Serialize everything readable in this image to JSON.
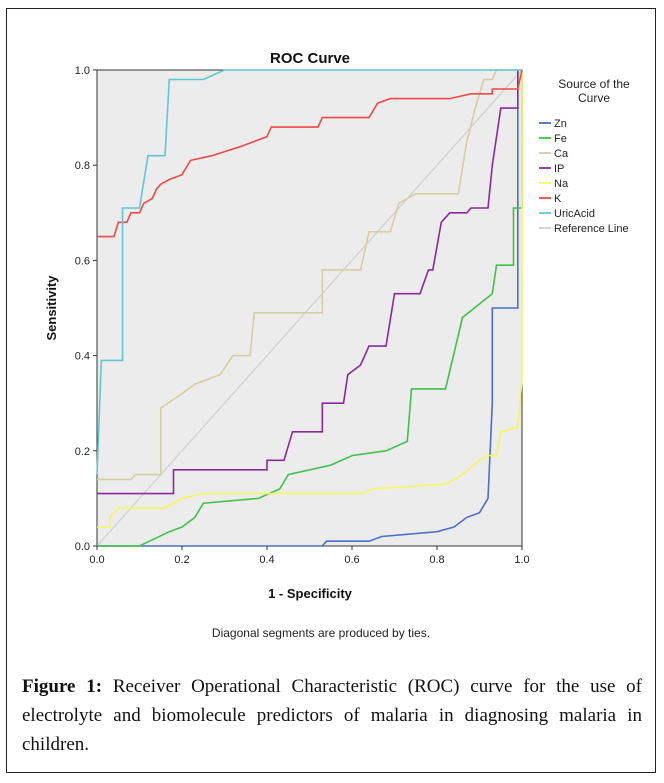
{
  "chart_data": {
    "type": "line",
    "title": "ROC Curve",
    "xlabel": "1 - Specificity",
    "ylabel": "Sensitivity",
    "xlim": [
      0.0,
      1.0
    ],
    "ylim": [
      0.0,
      1.0
    ],
    "x_ticks": [
      "0.0",
      "0.2",
      "0.4",
      "0.6",
      "0.8",
      "1.0"
    ],
    "y_ticks": [
      "0.0",
      "0.2",
      "0.4",
      "0.6",
      "0.8",
      "1.0"
    ],
    "grid": false,
    "legend_title": "Source of the Curve",
    "legend_position": "right",
    "footnote": "Diagonal segments are produced by ties.",
    "series": [
      {
        "name": "Zn",
        "color": "#4a6fc7",
        "points": [
          [
            0,
            0
          ],
          [
            0.53,
            0
          ],
          [
            0.54,
            0.01
          ],
          [
            0.64,
            0.01
          ],
          [
            0.67,
            0.02
          ],
          [
            0.8,
            0.03
          ],
          [
            0.84,
            0.04
          ],
          [
            0.87,
            0.06
          ],
          [
            0.9,
            0.07
          ],
          [
            0.92,
            0.1
          ],
          [
            0.93,
            0.3
          ],
          [
            0.93,
            0.5
          ],
          [
            0.99,
            0.5
          ],
          [
            0.99,
            1.0
          ]
        ]
      },
      {
        "name": "Fe",
        "color": "#3fc24a",
        "points": [
          [
            0,
            0
          ],
          [
            0.1,
            0
          ],
          [
            0.17,
            0.03
          ],
          [
            0.2,
            0.04
          ],
          [
            0.23,
            0.06
          ],
          [
            0.25,
            0.09
          ],
          [
            0.38,
            0.1
          ],
          [
            0.43,
            0.12
          ],
          [
            0.45,
            0.15
          ],
          [
            0.55,
            0.17
          ],
          [
            0.6,
            0.19
          ],
          [
            0.68,
            0.2
          ],
          [
            0.73,
            0.22
          ],
          [
            0.74,
            0.33
          ],
          [
            0.82,
            0.33
          ],
          [
            0.86,
            0.48
          ],
          [
            0.93,
            0.53
          ],
          [
            0.94,
            0.59
          ],
          [
            0.98,
            0.59
          ],
          [
            0.98,
            0.71
          ],
          [
            1.0,
            0.71
          ],
          [
            1.0,
            1.0
          ]
        ]
      },
      {
        "name": "Ca",
        "color": "#d8cda0",
        "points": [
          [
            0,
            0.14
          ],
          [
            0.08,
            0.14
          ],
          [
            0.09,
            0.15
          ],
          [
            0.15,
            0.15
          ],
          [
            0.15,
            0.29
          ],
          [
            0.2,
            0.32
          ],
          [
            0.23,
            0.34
          ],
          [
            0.29,
            0.36
          ],
          [
            0.32,
            0.4
          ],
          [
            0.36,
            0.4
          ],
          [
            0.37,
            0.49
          ],
          [
            0.53,
            0.49
          ],
          [
            0.53,
            0.58
          ],
          [
            0.62,
            0.58
          ],
          [
            0.64,
            0.66
          ],
          [
            0.69,
            0.66
          ],
          [
            0.71,
            0.72
          ],
          [
            0.75,
            0.74
          ],
          [
            0.85,
            0.74
          ],
          [
            0.87,
            0.85
          ],
          [
            0.89,
            0.92
          ],
          [
            0.91,
            0.98
          ],
          [
            0.93,
            0.98
          ],
          [
            0.94,
            1.0
          ],
          [
            1.0,
            1.0
          ]
        ]
      },
      {
        "name": "IP",
        "color": "#8a2a9a",
        "points": [
          [
            0,
            0.11
          ],
          [
            0.18,
            0.11
          ],
          [
            0.18,
            0.16
          ],
          [
            0.4,
            0.16
          ],
          [
            0.4,
            0.18
          ],
          [
            0.44,
            0.18
          ],
          [
            0.46,
            0.24
          ],
          [
            0.53,
            0.24
          ],
          [
            0.53,
            0.3
          ],
          [
            0.58,
            0.3
          ],
          [
            0.59,
            0.36
          ],
          [
            0.62,
            0.38
          ],
          [
            0.64,
            0.42
          ],
          [
            0.68,
            0.42
          ],
          [
            0.7,
            0.53
          ],
          [
            0.76,
            0.53
          ],
          [
            0.78,
            0.58
          ],
          [
            0.79,
            0.58
          ],
          [
            0.81,
            0.68
          ],
          [
            0.83,
            0.7
          ],
          [
            0.87,
            0.7
          ],
          [
            0.88,
            0.71
          ],
          [
            0.92,
            0.71
          ],
          [
            0.93,
            0.8
          ],
          [
            0.95,
            0.92
          ],
          [
            0.99,
            0.92
          ],
          [
            0.99,
            1.0
          ]
        ]
      },
      {
        "name": "Na",
        "color": "#f5f560",
        "points": [
          [
            0,
            0.04
          ],
          [
            0.03,
            0.04
          ],
          [
            0.03,
            0.06
          ],
          [
            0.05,
            0.08
          ],
          [
            0.16,
            0.08
          ],
          [
            0.2,
            0.1
          ],
          [
            0.25,
            0.11
          ],
          [
            0.62,
            0.11
          ],
          [
            0.65,
            0.12
          ],
          [
            0.82,
            0.13
          ],
          [
            0.86,
            0.15
          ],
          [
            0.9,
            0.18
          ],
          [
            0.92,
            0.19
          ],
          [
            0.94,
            0.19
          ],
          [
            0.95,
            0.24
          ],
          [
            0.99,
            0.25
          ],
          [
            1.0,
            0.35
          ],
          [
            1.0,
            1.0
          ]
        ]
      },
      {
        "name": "K",
        "color": "#f04848",
        "points": [
          [
            0,
            0.65
          ],
          [
            0.04,
            0.65
          ],
          [
            0.05,
            0.68
          ],
          [
            0.07,
            0.68
          ],
          [
            0.08,
            0.7
          ],
          [
            0.1,
            0.7
          ],
          [
            0.11,
            0.72
          ],
          [
            0.13,
            0.73
          ],
          [
            0.14,
            0.75
          ],
          [
            0.15,
            0.76
          ],
          [
            0.17,
            0.77
          ],
          [
            0.2,
            0.78
          ],
          [
            0.22,
            0.81
          ],
          [
            0.27,
            0.82
          ],
          [
            0.34,
            0.84
          ],
          [
            0.4,
            0.86
          ],
          [
            0.41,
            0.88
          ],
          [
            0.52,
            0.88
          ],
          [
            0.53,
            0.9
          ],
          [
            0.64,
            0.9
          ],
          [
            0.66,
            0.93
          ],
          [
            0.69,
            0.94
          ],
          [
            0.83,
            0.94
          ],
          [
            0.88,
            0.95
          ],
          [
            0.93,
            0.95
          ],
          [
            0.93,
            0.96
          ],
          [
            0.99,
            0.96
          ],
          [
            1.0,
            1.0
          ]
        ]
      },
      {
        "name": "UricAcid",
        "color": "#5bc8d3",
        "points": [
          [
            0,
            0.15
          ],
          [
            0.01,
            0.39
          ],
          [
            0.06,
            0.39
          ],
          [
            0.06,
            0.71
          ],
          [
            0.1,
            0.71
          ],
          [
            0.12,
            0.82
          ],
          [
            0.16,
            0.82
          ],
          [
            0.17,
            0.98
          ],
          [
            0.25,
            0.98
          ],
          [
            0.3,
            1.0
          ],
          [
            1.0,
            1.0
          ]
        ]
      },
      {
        "name": "Reference Line",
        "color": "#cfcfcf",
        "points": [
          [
            0,
            0
          ],
          [
            1,
            1
          ]
        ]
      }
    ]
  },
  "caption": {
    "label": "Figure 1:",
    "text": " Receiver Operational Characteristic (ROC) curve for the use of electrolyte and biomolecule predictors of malaria in diagnosing malaria in children."
  }
}
